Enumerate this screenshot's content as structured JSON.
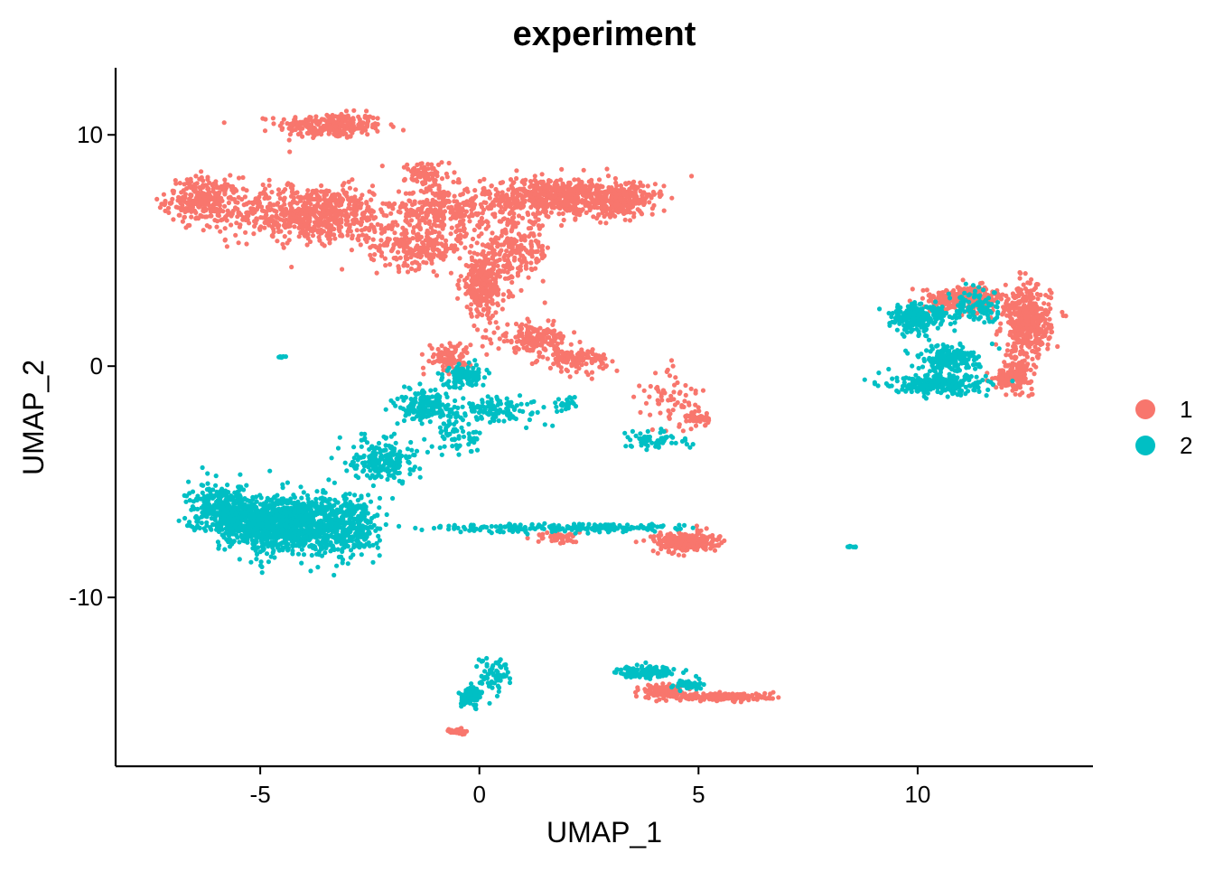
{
  "chart_data": {
    "type": "scatter",
    "title": "experiment",
    "xlabel": "UMAP_1",
    "ylabel": "UMAP_2",
    "xlim": [
      -8.3,
      14.0
    ],
    "ylim": [
      -17.3,
      12.9
    ],
    "x_ticks": [
      -5,
      0,
      5,
      10
    ],
    "x_tick_labels": [
      "-5",
      "0",
      "5",
      "10"
    ],
    "y_ticks": [
      -10,
      0,
      10
    ],
    "y_tick_labels": [
      "-10",
      "0",
      "10"
    ],
    "grid": false,
    "legend": {
      "position": "right",
      "entries": [
        {
          "label": "1",
          "color": "#F8766D"
        },
        {
          "label": "2",
          "color": "#00BFC4"
        }
      ]
    },
    "series": [
      {
        "name": "1",
        "color": "#F8766D",
        "clusters": [
          {
            "center": [
              -3.4,
              10.4
            ],
            "spread": [
              1.0,
              0.45
            ],
            "count": 260
          },
          {
            "center": [
              -6.3,
              7.2
            ],
            "spread": [
              0.7,
              0.8
            ],
            "count": 260
          },
          {
            "center": [
              -3.8,
              6.6
            ],
            "spread": [
              1.6,
              1.0
            ],
            "count": 700
          },
          {
            "center": [
              -1.4,
              5.2
            ],
            "spread": [
              0.9,
              0.8
            ],
            "count": 260
          },
          {
            "center": [
              -0.8,
              6.8
            ],
            "spread": [
              0.9,
              0.8
            ],
            "count": 260
          },
          {
            "center": [
              1.8,
              7.3
            ],
            "spread": [
              1.4,
              0.7
            ],
            "count": 640
          },
          {
            "center": [
              3.3,
              7.2
            ],
            "spread": [
              0.6,
              0.6
            ],
            "count": 200
          },
          {
            "center": [
              0.1,
              3.5
            ],
            "spread": [
              0.45,
              1.1
            ],
            "count": 280
          },
          {
            "center": [
              0.8,
              5.0
            ],
            "spread": [
              0.7,
              1.1
            ],
            "count": 220
          },
          {
            "center": [
              1.2,
              1.2
            ],
            "spread": [
              0.7,
              0.5
            ],
            "count": 160
          },
          {
            "center": [
              2.2,
              0.3
            ],
            "spread": [
              0.6,
              0.4
            ],
            "count": 130
          },
          {
            "center": [
              -0.7,
              0.4
            ],
            "spread": [
              0.4,
              0.5
            ],
            "count": 100
          },
          {
            "center": [
              -1.2,
              8.3
            ],
            "spread": [
              0.4,
              0.5
            ],
            "count": 80
          },
          {
            "center": [
              4.4,
              -1.5
            ],
            "spread": [
              0.6,
              1.2
            ],
            "count": 70
          },
          {
            "center": [
              5.0,
              -2.3
            ],
            "spread": [
              0.2,
              0.25
            ],
            "count": 40
          },
          {
            "center": [
              12.5,
              1.9
            ],
            "spread": [
              0.45,
              1.3
            ],
            "count": 420
          },
          {
            "center": [
              11.1,
              2.9
            ],
            "spread": [
              0.8,
              0.45
            ],
            "count": 240
          },
          {
            "center": [
              12.2,
              -0.4
            ],
            "spread": [
              0.35,
              0.5
            ],
            "count": 160
          },
          {
            "center": [
              4.7,
              -7.6
            ],
            "spread": [
              0.6,
              0.35
            ],
            "count": 260
          },
          {
            "center": [
              1.8,
              -7.4
            ],
            "spread": [
              0.4,
              0.25
            ],
            "count": 50
          },
          {
            "center": [
              5.5,
              -14.3
            ],
            "spread": [
              1.0,
              0.15
            ],
            "count": 230
          },
          {
            "center": [
              4.2,
              -14.0
            ],
            "spread": [
              0.4,
              0.2
            ],
            "count": 90
          },
          {
            "center": [
              -0.5,
              -15.8
            ],
            "spread": [
              0.15,
              0.12
            ],
            "count": 25
          }
        ]
      },
      {
        "name": "2",
        "color": "#00BFC4",
        "clusters": [
          {
            "center": [
              -4.5,
              -6.8
            ],
            "spread": [
              1.1,
              1.0
            ],
            "count": 1100
          },
          {
            "center": [
              -5.9,
              -6.2
            ],
            "spread": [
              0.6,
              0.9
            ],
            "count": 320
          },
          {
            "center": [
              -3.0,
              -7.0
            ],
            "spread": [
              0.6,
              1.1
            ],
            "count": 320
          },
          {
            "center": [
              -2.2,
              -4.0
            ],
            "spread": [
              0.6,
              0.8
            ],
            "count": 200
          },
          {
            "center": [
              -1.2,
              -1.7
            ],
            "spread": [
              0.55,
              0.6
            ],
            "count": 180
          },
          {
            "center": [
              -0.3,
              -0.4
            ],
            "spread": [
              0.4,
              0.4
            ],
            "count": 120
          },
          {
            "center": [
              0.5,
              -1.9
            ],
            "spread": [
              0.8,
              0.45
            ],
            "count": 110
          },
          {
            "center": [
              -0.5,
              -3.0
            ],
            "spread": [
              0.5,
              0.7
            ],
            "count": 60
          },
          {
            "center": [
              1.2,
              -7.0
            ],
            "spread": [
              2.0,
              0.15
            ],
            "count": 130
          },
          {
            "center": [
              3.2,
              -7.0
            ],
            "spread": [
              1.2,
              0.15
            ],
            "count": 80
          },
          {
            "center": [
              10.0,
              2.1
            ],
            "spread": [
              0.55,
              0.55
            ],
            "count": 220
          },
          {
            "center": [
              10.7,
              0.3
            ],
            "spread": [
              0.6,
              0.45
            ],
            "count": 180
          },
          {
            "center": [
              10.5,
              -0.8
            ],
            "spread": [
              0.9,
              0.35
            ],
            "count": 260
          },
          {
            "center": [
              11.4,
              2.5
            ],
            "spread": [
              0.5,
              0.6
            ],
            "count": 100
          },
          {
            "center": [
              -0.2,
              -14.3
            ],
            "spread": [
              0.18,
              0.35
            ],
            "count": 90
          },
          {
            "center": [
              0.3,
              -13.3
            ],
            "spread": [
              0.35,
              0.7
            ],
            "count": 70
          },
          {
            "center": [
              3.8,
              -13.2
            ],
            "spread": [
              0.55,
              0.2
            ],
            "count": 130
          },
          {
            "center": [
              4.8,
              -13.8
            ],
            "spread": [
              0.3,
              0.2
            ],
            "count": 40
          },
          {
            "center": [
              4.0,
              -3.2
            ],
            "spread": [
              0.6,
              0.35
            ],
            "count": 60
          },
          {
            "center": [
              8.5,
              -7.8
            ],
            "spread": [
              0.1,
              0.05
            ],
            "count": 8
          },
          {
            "center": [
              -4.5,
              0.4
            ],
            "spread": [
              0.08,
              0.04
            ],
            "count": 8
          },
          {
            "center": [
              2.0,
              -1.7
            ],
            "spread": [
              0.2,
              0.3
            ],
            "count": 25
          }
        ]
      }
    ]
  }
}
